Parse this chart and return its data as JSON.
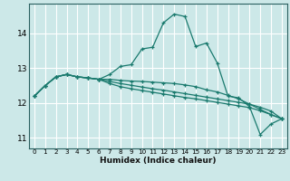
{
  "title": "",
  "xlabel": "Humidex (Indice chaleur)",
  "background_color": "#cce8e8",
  "grid_color": "#ffffff",
  "line_color": "#1a7a6e",
  "xlim": [
    -0.5,
    23.5
  ],
  "ylim": [
    10.7,
    14.85
  ],
  "yticks": [
    11,
    12,
    13,
    14
  ],
  "xticks": [
    0,
    1,
    2,
    3,
    4,
    5,
    6,
    7,
    8,
    9,
    10,
    11,
    12,
    13,
    14,
    15,
    16,
    17,
    18,
    19,
    20,
    21,
    22,
    23
  ],
  "series": [
    [
      12.2,
      12.5,
      12.75,
      12.82,
      12.75,
      12.72,
      12.68,
      12.82,
      13.05,
      13.1,
      13.55,
      13.6,
      14.3,
      14.55,
      14.48,
      13.62,
      13.72,
      13.15,
      12.2,
      12.15,
      11.9,
      11.1,
      11.4,
      11.55
    ],
    [
      12.2,
      12.5,
      12.75,
      12.82,
      12.75,
      12.72,
      12.68,
      12.68,
      12.65,
      12.63,
      12.62,
      12.6,
      12.58,
      12.56,
      12.52,
      12.47,
      12.38,
      12.32,
      12.22,
      12.12,
      11.97,
      11.82,
      11.67,
      11.55
    ],
    [
      12.2,
      12.5,
      12.75,
      12.82,
      12.75,
      12.72,
      12.68,
      12.62,
      12.56,
      12.51,
      12.46,
      12.41,
      12.37,
      12.32,
      12.27,
      12.22,
      12.17,
      12.12,
      12.07,
      12.02,
      11.97,
      11.88,
      11.77,
      11.55
    ],
    [
      12.2,
      12.5,
      12.75,
      12.82,
      12.75,
      12.72,
      12.68,
      12.56,
      12.47,
      12.41,
      12.36,
      12.31,
      12.26,
      12.21,
      12.16,
      12.12,
      12.07,
      12.02,
      11.97,
      11.92,
      11.87,
      11.78,
      11.67,
      11.55
    ]
  ]
}
